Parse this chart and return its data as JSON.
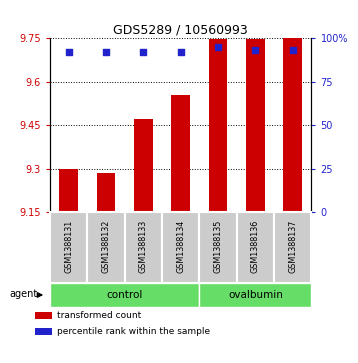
{
  "title": "GDS5289 / 10560993",
  "samples": [
    "GSM1388131",
    "GSM1388132",
    "GSM1388133",
    "GSM1388134",
    "GSM1388135",
    "GSM1388136",
    "GSM1388137"
  ],
  "transformed_count": [
    9.3,
    9.285,
    9.47,
    9.555,
    9.748,
    9.748,
    9.75
  ],
  "percentile_rank": [
    92,
    92,
    92,
    92,
    95,
    93,
    93
  ],
  "bar_bottom": 9.15,
  "ylim_left": [
    9.15,
    9.75
  ],
  "ylim_right": [
    0,
    100
  ],
  "yticks_left": [
    9.15,
    9.3,
    9.45,
    9.6,
    9.75
  ],
  "yticks_right": [
    0,
    25,
    50,
    75,
    100
  ],
  "ytick_labels_left": [
    "9.15",
    "9.3",
    "9.45",
    "9.6",
    "9.75"
  ],
  "ytick_labels_right": [
    "0",
    "25",
    "50",
    "75",
    "100%"
  ],
  "control_indices": [
    0,
    1,
    2,
    3
  ],
  "ovalbumin_indices": [
    4,
    5,
    6
  ],
  "bar_color": "#cc0000",
  "dot_color": "#2222cc",
  "agent_label": "agent",
  "legend_items": [
    {
      "label": "transformed count",
      "color": "#cc0000"
    },
    {
      "label": "percentile rank within the sample",
      "color": "#2222cc"
    }
  ],
  "tick_color_left": "#cc0000",
  "tick_color_right": "#2222cc",
  "sample_bg_color": "#cccccc",
  "group_bg_color": "#66dd66",
  "bar_width": 0.5
}
